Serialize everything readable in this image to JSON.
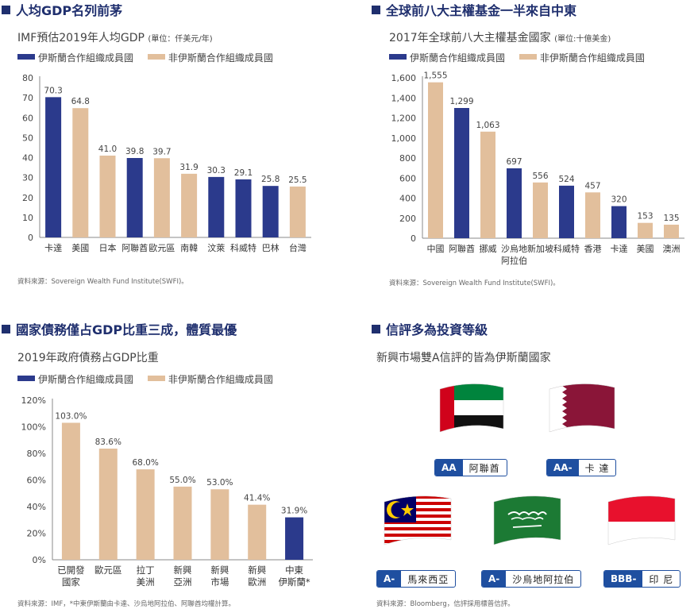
{
  "colors": {
    "member": "#2b3a8c",
    "nonmember": "#e2bf9c",
    "accent": "#1f2f6e",
    "badge": "#1f4fa0"
  },
  "panels": {
    "p1": {
      "title": "人均GDP名列前茅",
      "subtitle": "IMF預估2019年人均GDP",
      "unit": "(單位：仟美元/年)",
      "legend": [
        "伊斯蘭合作組織成員國",
        "非伊斯蘭合作組織成員國"
      ],
      "source": "資料來源：Sovereign Wealth Fund Institute(SWFI)。"
    },
    "p2": {
      "title": "全球前八大主權基金一半來自中東",
      "subtitle": "2017年全球前八大主權基金國家",
      "unit": "(單位:十億美金)",
      "legend": [
        "伊斯蘭合作組織成員國",
        "非伊斯蘭合作組織成員國"
      ],
      "source": "資料來源：Sovereign Wealth Fund Institute(SWFI)。"
    },
    "p3": {
      "title": "國家債務僅占GDP比重三成，體質最優",
      "subtitle": "2019年政府債務占GDP比重",
      "legend": [
        "伊斯蘭合作組織成員國",
        "非伊斯蘭合作組織成員國"
      ],
      "source": "資料來源：IMF，*中東伊斯蘭由卡達、沙烏地阿拉伯、阿聯酋均權計算。"
    },
    "p4": {
      "title": "信評多為投資等級",
      "subtitle": "新興市場雙A信評的皆為伊斯蘭國家",
      "source": "資料來源：Bloomberg，信評採用標普信評。",
      "ratings": [
        {
          "grade": "AA",
          "country": "阿聯酋",
          "flag": "uae-flag"
        },
        {
          "grade": "AA-",
          "country": "卡 達",
          "flag": "qatar-flag"
        },
        {
          "grade": "A-",
          "country": "馬來西亞",
          "flag": "malaysia-flag"
        },
        {
          "grade": "A-",
          "country": "沙烏地阿拉伯",
          "flag": "saudi-flag"
        },
        {
          "grade": "BBB-",
          "country": "印 尼",
          "flag": "indonesia-flag"
        }
      ]
    }
  },
  "chart_data": [
    {
      "type": "bar",
      "title": "IMF預估2019年人均GDP",
      "unit": "仟美元/年",
      "categories": [
        "卡達",
        "美國",
        "日本",
        "阿聯酋",
        "歐元區",
        "南韓",
        "汶萊",
        "科威特",
        "巴林",
        "台灣"
      ],
      "values": [
        70.3,
        64.8,
        41.0,
        39.8,
        39.7,
        31.9,
        30.3,
        29.1,
        25.8,
        25.5
      ],
      "labels": [
        "70.3",
        "64.8",
        "41.0",
        "39.8",
        "39.7",
        "31.9",
        "30.3",
        "29.1",
        "25.8",
        "25.5"
      ],
      "member": [
        true,
        false,
        false,
        true,
        false,
        false,
        true,
        true,
        true,
        false
      ],
      "ylim": [
        0,
        80
      ],
      "yticks": [
        "0",
        "10",
        "20",
        "30",
        "40",
        "50",
        "60",
        "70",
        "80"
      ],
      "grid": false
    },
    {
      "type": "bar",
      "title": "2017年全球前八大主權基金國家",
      "unit": "十億美金",
      "categories": [
        "中國",
        "阿聯酋",
        "挪威",
        "沙烏地\n阿拉伯",
        "新加坡",
        "科威特",
        "香港",
        "卡達",
        "美國",
        "澳洲"
      ],
      "values": [
        1555,
        1299,
        1063,
        697,
        556,
        524,
        457,
        320,
        153,
        135
      ],
      "labels": [
        "1,555",
        "1,299",
        "1,063",
        "697",
        "556",
        "524",
        "457",
        "320",
        "153",
        "135"
      ],
      "member": [
        false,
        true,
        false,
        true,
        false,
        true,
        false,
        true,
        false,
        false
      ],
      "ylim": [
        0,
        1600
      ],
      "yticks": [
        "0",
        "200",
        "400",
        "600",
        "800",
        "1,000",
        "1,200",
        "1,400",
        "1,600"
      ],
      "grid": false
    },
    {
      "type": "bar",
      "title": "2019年政府債務占GDP比重",
      "categories": [
        "已開發\n國家",
        "歐元區",
        "拉丁\n美洲",
        "新興\n亞洲",
        "新興\n市場",
        "新興\n歐洲",
        "中東\n伊斯蘭*"
      ],
      "values": [
        103.0,
        83.6,
        68.0,
        55.0,
        53.0,
        41.4,
        31.9
      ],
      "labels": [
        "103.0%",
        "83.6%",
        "68.0%",
        "55.0%",
        "53.0%",
        "41.4%",
        "31.9%"
      ],
      "member": [
        false,
        false,
        false,
        false,
        false,
        false,
        true
      ],
      "ylim": [
        0,
        120
      ],
      "yticks": [
        "0%",
        "20%",
        "40%",
        "60%",
        "80%",
        "100%",
        "120%"
      ],
      "grid": false
    }
  ]
}
